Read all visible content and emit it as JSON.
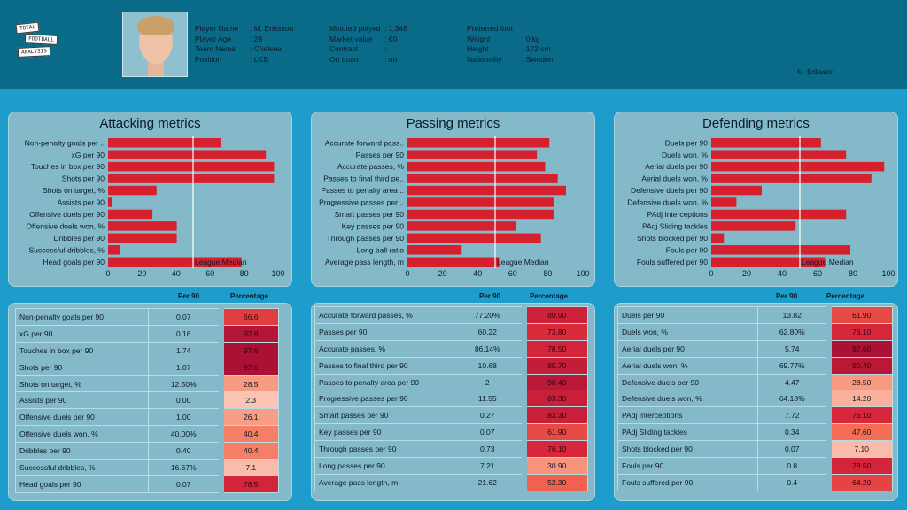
{
  "header": {
    "logo_text": [
      "TOTAL",
      "FOOTBALL",
      "ANALYSIS"
    ],
    "col1": [
      [
        "Player Name",
        ": M. Eriksson"
      ],
      [
        "Player Age",
        ": 28"
      ],
      [
        "Team Name",
        ": Chelsea"
      ],
      [
        "Position",
        ": LCB"
      ]
    ],
    "col2": [
      [
        "Minuted played",
        ": 1,348"
      ],
      [
        "Market value",
        ": €0"
      ],
      [
        "Contract",
        ":"
      ],
      [
        "On Loan",
        ": no"
      ]
    ],
    "col3": [
      [
        "Preferred foot",
        ":"
      ],
      [
        "Weight",
        ": 0 kg"
      ],
      [
        "Height",
        ": 172 cm"
      ],
      [
        "Nationality",
        ": Sweden"
      ]
    ],
    "player_name": "M. Eriksson"
  },
  "table_headers": {
    "per90": "Per 90",
    "pct": "Percentage"
  },
  "colors": {
    "bar": "#d7202d",
    "median_line": "#ffffff",
    "low": "#fbc4b4",
    "high": "#a50f35"
  },
  "chart_data": [
    {
      "type": "bar",
      "title": "Attacking metrics",
      "orientation": "horizontal",
      "xlim": [
        0,
        100
      ],
      "xticks": [
        0,
        20,
        40,
        60,
        80,
        100
      ],
      "median": 50,
      "median_label": "League Median",
      "categories": [
        "Non-penalty goals per ..",
        "xG per 90",
        "Touches in box per 90",
        "Shots per 90",
        "Shots on target, %",
        "Assists per 90",
        "Offensive duels per 90",
        "Offensive duels won, %",
        "Dribbles per 90",
        "Successful dribbles, %",
        "Head goals per 90"
      ],
      "values": [
        66.6,
        92.8,
        97.6,
        97.6,
        28.5,
        2.3,
        26.1,
        40.4,
        40.4,
        7.1,
        78.5
      ]
    },
    {
      "type": "bar",
      "title": "Passing metrics",
      "orientation": "horizontal",
      "xlim": [
        0,
        100
      ],
      "xticks": [
        0,
        20,
        40,
        60,
        80,
        100
      ],
      "median": 50,
      "median_label": "League Median",
      "categories": [
        "Accurate forward pass..",
        "Passes per 90",
        "Accurate passes, %",
        "Passes to final third pe..",
        "Passes to penalty area ..",
        "Progressive passes per ..",
        "Smart passes per 90",
        "Key passes per 90",
        "Through passes per 90",
        "Long ball ratio",
        "Average pass length, m"
      ],
      "values": [
        80.9,
        73.8,
        78.5,
        85.7,
        90.4,
        83.3,
        83.3,
        61.9,
        76.1,
        30.9,
        52.3
      ]
    },
    {
      "type": "bar",
      "title": "Defending metrics",
      "orientation": "horizontal",
      "xlim": [
        0,
        100
      ],
      "xticks": [
        0,
        20,
        40,
        60,
        80,
        100
      ],
      "median": 50,
      "median_label": "League Median",
      "categories": [
        "Duels per 90",
        "Duels won, %",
        "Aerial duels per 90",
        "Aerial duels won, %",
        "Defensive duels per 90",
        "Defensive duels won, %",
        "PAdj Interceptions",
        "PAdj Sliding tackles",
        "Shots blocked per 90",
        "Fouls per 90",
        "Fouls suffered per 90"
      ],
      "values": [
        61.9,
        76.1,
        97.6,
        90.4,
        28.5,
        14.2,
        76.1,
        47.6,
        7.1,
        78.5,
        64.2
      ]
    }
  ],
  "tables": [
    {
      "rows": [
        [
          "Non-penalty goals per 90",
          "0.07",
          "66.6"
        ],
        [
          "xG per 90",
          "0.16",
          "92.8"
        ],
        [
          "Touches in box per 90",
          "1.74",
          "97.6"
        ],
        [
          "Shots per 90",
          "1.07",
          "97.6"
        ],
        [
          "Shots on target, %",
          "12.50%",
          "28.5"
        ],
        [
          "Assists per 90",
          "0.00",
          "2.3"
        ],
        [
          "Offensive duels per 90",
          "1.00",
          "26.1"
        ],
        [
          "Offensive duels won, %",
          "40.00%",
          "40.4"
        ],
        [
          "Dribbles per 90",
          "0.40",
          "40.4"
        ],
        [
          "Successful dribbles, %",
          "16.67%",
          "7.1"
        ],
        [
          "Head goals per 90",
          "0.07",
          "78.5"
        ]
      ]
    },
    {
      "rows": [
        [
          "Accurate forward passes, %",
          "77.20%",
          "80.90"
        ],
        [
          "Passes per 90",
          "60.22",
          "73.80"
        ],
        [
          "Accurate passes, %",
          "86.14%",
          "78.50"
        ],
        [
          "Passes to final third per 90",
          "10.68",
          "85.70"
        ],
        [
          "Passes to penalty area per 90",
          "2",
          "90.40"
        ],
        [
          "Progressive passes per 90",
          "11.55",
          "83.30"
        ],
        [
          "Smart passes per 90",
          "0.27",
          "83.30"
        ],
        [
          "Key passes per 90",
          "0.07",
          "61.90"
        ],
        [
          "Through passes per 90",
          "0.73",
          "76.10"
        ],
        [
          "Long passes per 90",
          "7.21",
          "30.90"
        ],
        [
          "Average pass length, m",
          "21.62",
          "52.30"
        ]
      ]
    },
    {
      "rows": [
        [
          "Duels per 90",
          "13.82",
          "61.90"
        ],
        [
          "Duels won, %",
          "62.80%",
          "76.10"
        ],
        [
          "Aerial duels per 90",
          "5.74",
          "97.60"
        ],
        [
          "Aerial duels won, %",
          "69.77%",
          "90.40"
        ],
        [
          "Defensive duels per 90",
          "4.47",
          "28.50"
        ],
        [
          "Defensive duels won, %",
          "64.18%",
          "14.20"
        ],
        [
          "PAdj Interceptions",
          "7.72",
          "76.10"
        ],
        [
          "PAdj Sliding tackles",
          "0.34",
          "47.60"
        ],
        [
          "Shots blocked per 90",
          "0.07",
          "7.10"
        ],
        [
          "Fouls per 90",
          "0.8",
          "78.50"
        ],
        [
          "Fouls suffered per 90",
          "0.4",
          "64.20"
        ]
      ]
    }
  ]
}
